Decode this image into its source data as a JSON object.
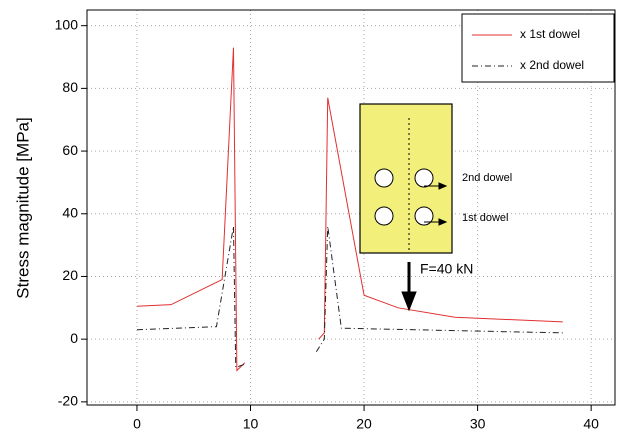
{
  "chart_data": {
    "type": "line",
    "ylabel": "Stress magnitude [MPa]",
    "xlim": [
      -4.4,
      42.1
    ],
    "xticks": [
      0,
      10,
      20,
      30,
      40
    ],
    "ylim": [
      -21,
      105
    ],
    "yticks": [
      -20,
      0,
      20,
      40,
      60,
      80,
      100
    ],
    "grid": true,
    "legend": "upper right",
    "series": [
      {
        "name": "x 1st dowel",
        "color": "#e03030",
        "dash": "solid",
        "x": [
          0,
          3,
          7.5,
          8.5,
          8.8,
          9.5,
          null,
          16,
          16.5,
          16.8,
          20,
          23,
          28,
          37.5
        ],
        "values": [
          10.5,
          11,
          19,
          93,
          -10,
          -7.5,
          null,
          0,
          2,
          77,
          14,
          10,
          7,
          5.5
        ]
      },
      {
        "name": "x 2nd dowel",
        "color": "#222222",
        "dash": "dashdot",
        "x": [
          0,
          7,
          8.5,
          8.7,
          9.5,
          null,
          15.8,
          16.5,
          16.8,
          18,
          37.5
        ],
        "values": [
          3,
          4,
          36,
          -9,
          -8,
          null,
          -4,
          0,
          36,
          3.5,
          2
        ]
      }
    ],
    "annotations": [
      "2nd dowel",
      "1st dowel",
      "F=40 kN"
    ]
  }
}
